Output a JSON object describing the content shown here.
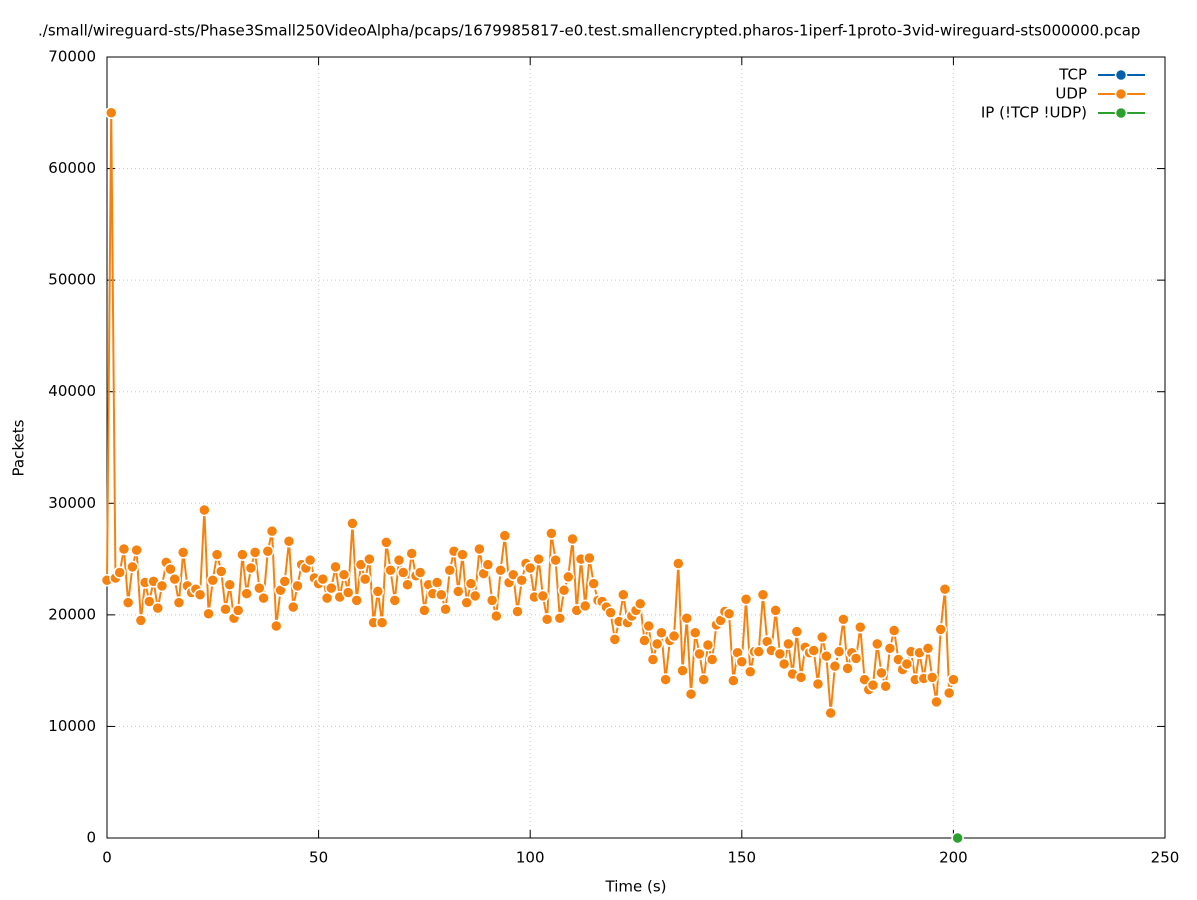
{
  "chart_data": {
    "type": "line",
    "title": "./small/wireguard-sts/Phase3Small250VideoAlpha/pcaps/1679985817-e0.test.smallencrypted.pharos-1iperf-1proto-3vid-wireguard-sts000000.pcap",
    "x_label": "Time (s)",
    "y_label": "Packets",
    "xlim": [
      0,
      250
    ],
    "xticks": [
      0,
      50,
      100,
      150,
      200,
      250
    ],
    "ylim": [
      0,
      70000
    ],
    "yticks": [
      0,
      10000,
      20000,
      30000,
      40000,
      50000,
      60000,
      70000
    ],
    "grid": true,
    "legend": "top-right",
    "series": [
      {
        "name": "TCP",
        "color": "#0060ad",
        "x": [],
        "values": []
      },
      {
        "name": "UDP",
        "color": "#f5820f",
        "x": [
          0,
          1,
          2,
          3,
          4,
          5,
          6,
          7,
          8,
          9,
          10,
          11,
          12,
          13,
          14,
          15,
          16,
          17,
          18,
          19,
          20,
          21,
          22,
          23,
          24,
          25,
          26,
          27,
          28,
          29,
          30,
          31,
          32,
          33,
          34,
          35,
          36,
          37,
          38,
          39,
          40,
          41,
          42,
          43,
          44,
          45,
          46,
          47,
          48,
          49,
          50,
          51,
          52,
          53,
          54,
          55,
          56,
          57,
          58,
          59,
          60,
          61,
          62,
          63,
          64,
          65,
          66,
          67,
          68,
          69,
          70,
          71,
          72,
          73,
          74,
          75,
          76,
          77,
          78,
          79,
          80,
          81,
          82,
          83,
          84,
          85,
          86,
          87,
          88,
          89,
          90,
          91,
          92,
          93,
          94,
          95,
          96,
          97,
          98,
          99,
          100,
          101,
          102,
          103,
          104,
          105,
          106,
          107,
          108,
          109,
          110,
          111,
          112,
          113,
          114,
          115,
          116,
          117,
          118,
          119,
          120,
          121,
          122,
          123,
          124,
          125,
          126,
          127,
          128,
          129,
          130,
          131,
          132,
          133,
          134,
          135,
          136,
          137,
          138,
          139,
          140,
          141,
          142,
          143,
          144,
          145,
          146,
          147,
          148,
          149,
          150,
          151,
          152,
          153,
          154,
          155,
          156,
          157,
          158,
          159,
          160,
          161,
          162,
          163,
          164,
          165,
          166,
          167,
          168,
          169,
          170,
          171,
          172,
          173,
          174,
          175,
          176,
          177,
          178,
          179,
          180,
          181,
          182,
          183,
          184,
          185,
          186,
          187,
          188,
          189,
          190,
          191,
          192,
          193,
          194,
          195,
          196,
          197,
          198,
          199,
          200
        ],
        "values": [
          23100,
          65000,
          23300,
          23800,
          25900,
          21100,
          24300,
          25800,
          19500,
          22900,
          21200,
          23000,
          20600,
          22600,
          24700,
          24100,
          23200,
          21100,
          25600,
          22600,
          22000,
          22300,
          21800,
          29400,
          20100,
          23100,
          25400,
          23900,
          20500,
          22700,
          19700,
          20400,
          25400,
          21900,
          24200,
          25600,
          22400,
          21500,
          25700,
          27500,
          19000,
          22200,
          23000,
          26600,
          20700,
          22600,
          24500,
          24200,
          24900,
          23300,
          22800,
          23200,
          21500,
          22400,
          24300,
          21600,
          23600,
          22000,
          28200,
          21300,
          24500,
          23200,
          25000,
          19300,
          22100,
          19300,
          26500,
          24000,
          21300,
          24900,
          23800,
          22700,
          25500,
          23500,
          23800,
          20400,
          22700,
          21900,
          22900,
          21800,
          20500,
          24000,
          25700,
          22100,
          25400,
          21100,
          22800,
          21700,
          25900,
          23700,
          24500,
          21300,
          19900,
          24000,
          27100,
          22900,
          23600,
          20300,
          23100,
          24600,
          24200,
          21600,
          25000,
          21700,
          19600,
          27300,
          24900,
          19700,
          22200,
          23400,
          26800,
          20400,
          25000,
          20800,
          25100,
          22800,
          21300,
          21200,
          20700,
          20200,
          17800,
          19400,
          21800,
          19300,
          19900,
          20400,
          21000,
          17700,
          19000,
          16000,
          17400,
          18400,
          14200,
          17700,
          18100,
          24600,
          15000,
          19700,
          12900,
          18400,
          16500,
          14200,
          17300,
          16000,
          19100,
          19500,
          20300,
          20100,
          14100,
          16600,
          15800,
          21400,
          14900,
          16700,
          16700,
          21800,
          17600,
          16800,
          20400,
          16500,
          15600,
          17400,
          14700,
          18500,
          14400,
          17100,
          16600,
          16800,
          13800,
          18000,
          16300,
          11200,
          15400,
          16700,
          19600,
          15200,
          16600,
          16100,
          18900,
          14200,
          13300,
          13700,
          17400,
          14800,
          13600,
          17000,
          18600,
          16000,
          15100,
          15600,
          16700,
          14200,
          16600,
          14300,
          17000,
          14400,
          12200,
          18700,
          22300,
          13000,
          14200
        ]
      },
      {
        "name": "IP (!TCP  !UDP)",
        "color": "#2ca02c",
        "x": [
          201
        ],
        "values": [
          0
        ]
      }
    ]
  }
}
